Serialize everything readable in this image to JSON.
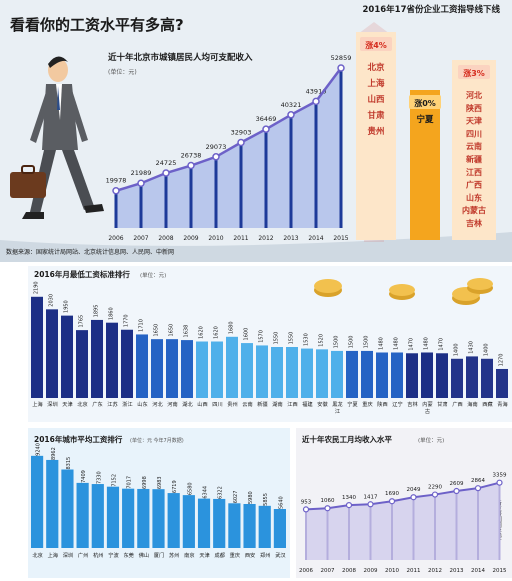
{
  "headline": "看看你的工资水平有多高?",
  "source": "数据来源：国家统计局网站、北京统计信息网、人民网、中新网",
  "stamp": "新京报制图/张雯",
  "colors": {
    "header_bg": "#e8eef3",
    "bar_dark": "#1a2d7a",
    "bar_light": "#2e93dd",
    "bar_panel_bg": "#e8f3fb",
    "line": "#c8c5e6",
    "accent_red": "#d52b1e",
    "orange": "#f4a51e",
    "text_dark": "#1a1a1a"
  },
  "chart_data": [
    {
      "type": "bar",
      "title": "近十年北京市城镇居民人均可支配收入",
      "unit": "(单位：元)",
      "categories": [
        "2006",
        "2007",
        "2008",
        "2009",
        "2010",
        "2011",
        "2012",
        "2013",
        "2014",
        "2015"
      ],
      "values": [
        19978,
        21989,
        24725,
        26738,
        29073,
        32903,
        36469,
        40321,
        43910,
        52859
      ]
    },
    {
      "type": "table",
      "title": "2016年17省份企业工资指导线下线",
      "groups": [
        {
          "badge": "涨4%",
          "provinces": [
            "北京",
            "上海",
            "山西",
            "甘肃",
            "贵州"
          ]
        },
        {
          "badge": "涨0%",
          "provinces": [
            "宁夏"
          ]
        },
        {
          "badge": "涨3%",
          "provinces": [
            "河北",
            "陕西",
            "天津",
            "四川",
            "云南",
            "新疆",
            "江西",
            "广西",
            "山东",
            "内蒙古",
            "吉林"
          ]
        }
      ]
    },
    {
      "type": "bar",
      "title": "2016年月最低工资标准排行",
      "unit": "(单位：元)",
      "categories": [
        "上海",
        "深圳",
        "天津",
        "北京",
        "广东",
        "江苏",
        "浙江",
        "山东",
        "河北",
        "河南",
        "湖北",
        "山西",
        "四川",
        "贵州",
        "云南",
        "新疆",
        "湖南",
        "江西",
        "福建",
        "安徽",
        "黑龙江",
        "宁夏",
        "重庆",
        "陕西",
        "辽宁",
        "吉林",
        "内蒙古",
        "甘肃",
        "广西",
        "海南",
        "西藏",
        "青海"
      ],
      "values": [
        2190,
        2030,
        1950,
        1765,
        1895,
        1860,
        1770,
        1710,
        1650,
        1650,
        1638,
        1620,
        1620,
        1680,
        1600,
        1570,
        1550,
        1550,
        1530,
        1520,
        1500,
        1500,
        1500,
        1480,
        1480,
        1470,
        1480,
        1470,
        1400,
        1430,
        1400,
        1270
      ]
    },
    {
      "type": "bar",
      "title": "2016年城市平均工资排行",
      "unit": "(单位：元   今年7月数据)",
      "categories": [
        "北京",
        "上海",
        "深圳",
        "广州",
        "杭州",
        "宁波",
        "东莞",
        "佛山",
        "厦门",
        "苏州",
        "南京",
        "天津",
        "成都",
        "重庆",
        "西安",
        "郑州",
        "武汉"
      ],
      "values": [
        9240,
        8962,
        8315,
        7409,
        7330,
        7152,
        7017,
        6998,
        6983,
        6719,
        6580,
        6344,
        6322,
        6027,
        5980,
        5855,
        5640
      ]
    },
    {
      "type": "line",
      "title": "近十年农民工月均收入水平",
      "unit": "(单位：元)",
      "x": [
        "2006",
        "2007",
        "2008",
        "2009",
        "2010",
        "2011",
        "2012",
        "2013",
        "2014",
        "2015"
      ],
      "values": [
        953,
        1060,
        1340,
        1417,
        1690,
        2049,
        2290,
        2609,
        2864,
        3359
      ]
    }
  ]
}
